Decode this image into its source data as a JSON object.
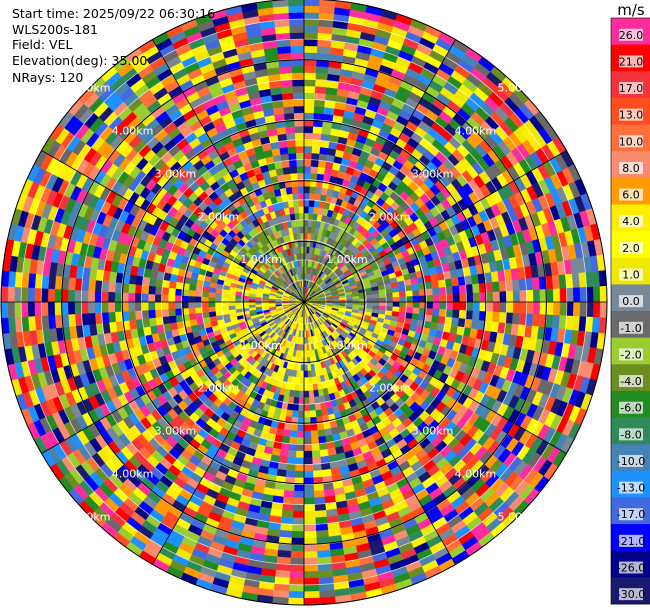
{
  "header": {
    "start_time": "Start time: 2025/09/22 06:30:16",
    "instrument": "WLS200s-181",
    "field": "Field: VEL",
    "elevation": "Elevation(deg): 35.00",
    "nrays": "NRays: 120"
  },
  "chart_data": {
    "type": "heatmap",
    "projection": "polar-ppi",
    "nrays": 120,
    "max_range_km": 5.0,
    "range_rings_km": [
      1.0,
      2.0,
      3.0,
      4.0,
      5.0
    ],
    "ring_labels": [
      "1.00km",
      "2.00km",
      "3.00km",
      "4.00km",
      "5.00km"
    ],
    "grid": true,
    "colorbar": {
      "unit": "m/s",
      "placement": "right",
      "bins": [
        {
          "label": "26.0",
          "color": "#ff2d9b"
        },
        {
          "label": "21.0",
          "color": "#ff0000"
        },
        {
          "label": "17.0",
          "color": "#f5333c"
        },
        {
          "label": "13.0",
          "color": "#ff4d20"
        },
        {
          "label": "10.0",
          "color": "#ff6f3a"
        },
        {
          "label": "8.0",
          "color": "#f98b6e"
        },
        {
          "label": "6.0",
          "color": "#ff9a00"
        },
        {
          "label": "4.0",
          "color": "#ffee00"
        },
        {
          "label": "2.0",
          "color": "#ffff00"
        },
        {
          "label": "1.0",
          "color": "#f2e700"
        },
        {
          "label": "0.0",
          "color": "#778899"
        },
        {
          "label": "-1.0",
          "color": "#696969"
        },
        {
          "label": "-2.0",
          "color": "#9acd32"
        },
        {
          "label": "-4.0",
          "color": "#6b8e23"
        },
        {
          "label": "-6.0",
          "color": "#228b22"
        },
        {
          "label": "-8.0",
          "color": "#2e8b57"
        },
        {
          "label": "-10.0",
          "color": "#4682b4"
        },
        {
          "label": "-13.0",
          "color": "#1e90ff"
        },
        {
          "label": "-17.0",
          "color": "#4169e1"
        },
        {
          "label": "-21.0",
          "color": "#0000ff"
        },
        {
          "label": "-26.0",
          "color": "#00008b"
        },
        {
          "label": "-30.0",
          "color": "#191970"
        }
      ]
    }
  }
}
